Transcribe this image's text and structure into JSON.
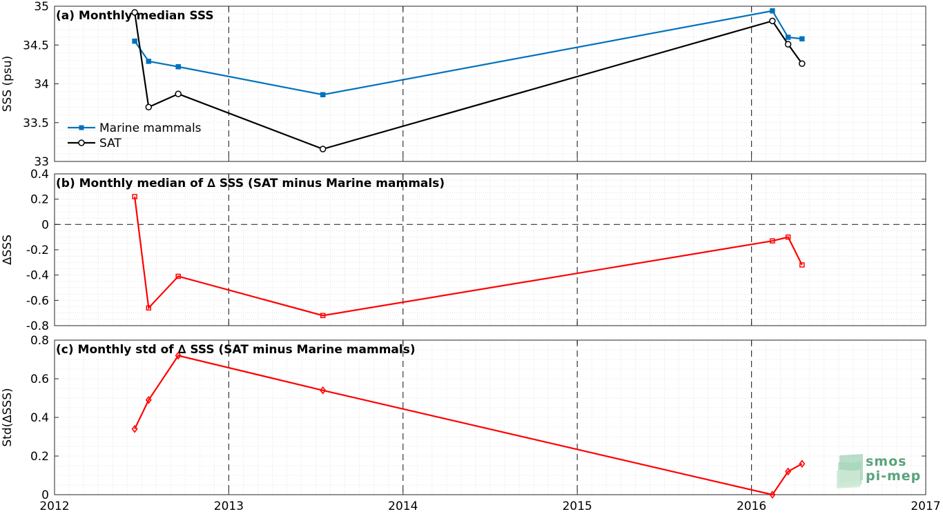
{
  "chart_data": [
    {
      "type": "line",
      "title": "(a) Monthly median SSS",
      "xlabel": "",
      "ylabel": "SSS (psu)",
      "xlim": [
        2012,
        2017
      ],
      "ylim": [
        33,
        35
      ],
      "y_ticks": [
        33,
        33.5,
        34,
        34.5,
        35
      ],
      "y_tick_labels": [
        "33",
        "33.5",
        "34",
        "34.5",
        "35"
      ],
      "grid": "minor dotted",
      "legend": "lower-left",
      "series": [
        {
          "name": "Marine mammals",
          "color": "#0072bd",
          "marker": "square",
          "points": [
            {
              "date": "2012-06",
              "x": 2012.46,
              "y": 34.55
            },
            {
              "date": "2012-07",
              "x": 2012.54,
              "y": 34.29
            },
            {
              "date": "2012-09",
              "x": 2012.71,
              "y": 34.22
            },
            {
              "date": "2013-07",
              "x": 2013.54,
              "y": 33.86
            },
            {
              "date": "2016-02",
              "x": 2016.12,
              "y": 34.94
            },
            {
              "date": "2016-03",
              "x": 2016.21,
              "y": 34.6
            },
            {
              "date": "2016-04",
              "x": 2016.29,
              "y": 34.58
            }
          ]
        },
        {
          "name": "SAT",
          "color": "#000000",
          "marker": "circle",
          "points": [
            {
              "date": "2012-06",
              "x": 2012.46,
              "y": 34.92
            },
            {
              "date": "2012-07",
              "x": 2012.54,
              "y": 33.7
            },
            {
              "date": "2012-09",
              "x": 2012.71,
              "y": 33.87
            },
            {
              "date": "2013-07",
              "x": 2013.54,
              "y": 33.16
            },
            {
              "date": "2016-02",
              "x": 2016.12,
              "y": 34.81
            },
            {
              "date": "2016-03",
              "x": 2016.21,
              "y": 34.51
            },
            {
              "date": "2016-04",
              "x": 2016.29,
              "y": 34.26
            }
          ]
        }
      ]
    },
    {
      "type": "line",
      "title": "(b) Monthly median of ∆ SSS (SAT minus Marine mammals)",
      "xlabel": "",
      "ylabel": "∆SSS",
      "xlim": [
        2012,
        2017
      ],
      "ylim": [
        -0.8,
        0.4
      ],
      "y_ticks": [
        -0.8,
        -0.6,
        -0.4,
        -0.2,
        0,
        0.2,
        0.4
      ],
      "y_tick_labels": [
        "-0.8",
        "-0.6",
        "-0.4",
        "-0.2",
        "0",
        "0.2",
        "0.4"
      ],
      "zero_line": true,
      "series": [
        {
          "color": "#ff0000",
          "marker": "square",
          "points": [
            {
              "date": "2012-06",
              "x": 2012.46,
              "y": 0.22
            },
            {
              "date": "2012-07",
              "x": 2012.54,
              "y": -0.66
            },
            {
              "date": "2012-09",
              "x": 2012.71,
              "y": -0.41
            },
            {
              "date": "2013-07",
              "x": 2013.54,
              "y": -0.72
            },
            {
              "date": "2016-02",
              "x": 2016.12,
              "y": -0.13
            },
            {
              "date": "2016-03",
              "x": 2016.21,
              "y": -0.1
            },
            {
              "date": "2016-04",
              "x": 2016.29,
              "y": -0.32
            }
          ]
        }
      ]
    },
    {
      "type": "line",
      "title": "(c) Monthly std of ∆ SSS (SAT minus Marine mammals)",
      "xlabel": "",
      "ylabel": "Std(∆SSS)",
      "xlim": [
        2012,
        2017
      ],
      "ylim": [
        0,
        0.8
      ],
      "y_ticks": [
        0,
        0.2,
        0.4,
        0.6,
        0.8
      ],
      "y_tick_labels": [
        "0",
        "0.2",
        "0.4",
        "0.6",
        "0.8"
      ],
      "series": [
        {
          "color": "#ff0000",
          "marker": "diamond",
          "points": [
            {
              "date": "2012-06",
              "x": 2012.46,
              "y": 0.34
            },
            {
              "date": "2012-07",
              "x": 2012.54,
              "y": 0.49
            },
            {
              "date": "2012-09",
              "x": 2012.71,
              "y": 0.72
            },
            {
              "date": "2013-07",
              "x": 2013.54,
              "y": 0.54
            },
            {
              "date": "2016-02",
              "x": 2016.12,
              "y": 0.0
            },
            {
              "date": "2016-03",
              "x": 2016.21,
              "y": 0.12
            },
            {
              "date": "2016-04",
              "x": 2016.29,
              "y": 0.16
            }
          ]
        }
      ]
    }
  ],
  "x_axis": {
    "ticks": [
      2012,
      2013,
      2014,
      2015,
      2016,
      2017
    ],
    "tick_labels": [
      "2012",
      "2013",
      "2014",
      "2015",
      "2016",
      "2017"
    ],
    "dashed_year_lines": [
      2013,
      2014,
      2015,
      2016
    ]
  },
  "logo": {
    "line1": "smos",
    "line2": "pi-mep",
    "color": "#5aa37a"
  }
}
